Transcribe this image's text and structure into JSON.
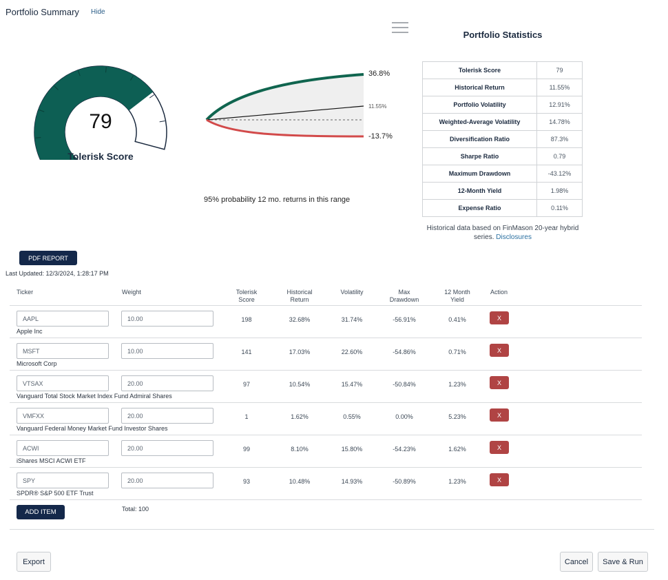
{
  "header": {
    "title": "Portfolio Summary",
    "hide_label": "Hide"
  },
  "gauge": {
    "score": "79",
    "label": "Tolerisk Score",
    "fill_fraction": 0.79,
    "colors": {
      "fill": "#0d5f54",
      "outline": "#1b2a3f"
    }
  },
  "projection": {
    "upper_label": "36.8%",
    "middle_label": "11.55%",
    "lower_label": "-13.7%",
    "caption": "95% probability 12 mo. returns in this range",
    "colors": {
      "upper": "#10654f",
      "lower": "#d24a4a",
      "band": "#efefef"
    }
  },
  "stats": {
    "title": "Portfolio Statistics",
    "rows": [
      {
        "label": "Tolerisk Score",
        "value": "79"
      },
      {
        "label": "Historical Return",
        "value": "11.55%"
      },
      {
        "label": "Portfolio Volatility",
        "value": "12.91%"
      },
      {
        "label": "Weighted-Average Volatility",
        "value": "14.78%"
      },
      {
        "label": "Diversification Ratio",
        "value": "87.3%"
      },
      {
        "label": "Sharpe Ratio",
        "value": "0.79"
      },
      {
        "label": "Maximum Drawdown",
        "value": "-43.12%"
      },
      {
        "label": "12-Month Yield",
        "value": "1.98%"
      },
      {
        "label": "Expense Ratio",
        "value": "0.11%"
      }
    ],
    "note": "Historical data based on FinMason 20-year hybrid series.",
    "note_link": "Disclosures"
  },
  "pdf_button": "PDF REPORT",
  "last_updated": "Last Updated: 12/3/2024, 1:28:17 PM",
  "table": {
    "headers": {
      "ticker": "Ticker",
      "weight": "Weight",
      "score": [
        "Tolerisk",
        "Score"
      ],
      "hist": [
        "Historical",
        "Return"
      ],
      "vol": "Volatility",
      "dd": [
        "Max",
        "Drawdown"
      ],
      "yield": [
        "12 Month",
        "Yield"
      ],
      "action": "Action"
    },
    "rows": [
      {
        "ticker": "AAPL",
        "name": "Apple Inc",
        "weight": "10.00",
        "score": "198",
        "hist": "32.68%",
        "vol": "31.74%",
        "dd": "-56.91%",
        "yield": "0.41%",
        "action": "X"
      },
      {
        "ticker": "MSFT",
        "name": "Microsoft Corp",
        "weight": "10.00",
        "score": "141",
        "hist": "17.03%",
        "vol": "22.60%",
        "dd": "-54.86%",
        "yield": "0.71%",
        "action": "X"
      },
      {
        "ticker": "VTSAX",
        "name": "Vanguard Total Stock Market Index Fund Admiral Shares",
        "weight": "20.00",
        "score": "97",
        "hist": "10.54%",
        "vol": "15.47%",
        "dd": "-50.84%",
        "yield": "1.23%",
        "action": "X"
      },
      {
        "ticker": "VMFXX",
        "name": "Vanguard Federal Money Market Fund Investor Shares",
        "weight": "20.00",
        "score": "1",
        "hist": "1.62%",
        "vol": "0.55%",
        "dd": "0.00%",
        "yield": "5.23%",
        "action": "X"
      },
      {
        "ticker": "ACWI",
        "name": "iShares MSCI ACWI ETF",
        "weight": "20.00",
        "score": "99",
        "hist": "8.10%",
        "vol": "15.80%",
        "dd": "-54.23%",
        "yield": "1.62%",
        "action": "X"
      },
      {
        "ticker": "SPY",
        "name": "SPDR® S&P 500 ETF Trust",
        "weight": "20.00",
        "score": "93",
        "hist": "10.48%",
        "vol": "14.93%",
        "dd": "-50.89%",
        "yield": "1.23%",
        "action": "X"
      }
    ],
    "add_item": "ADD ITEM",
    "total": "Total: 100"
  },
  "footer": {
    "export": "Export",
    "cancel": "Cancel",
    "save_run": "Save & Run"
  }
}
